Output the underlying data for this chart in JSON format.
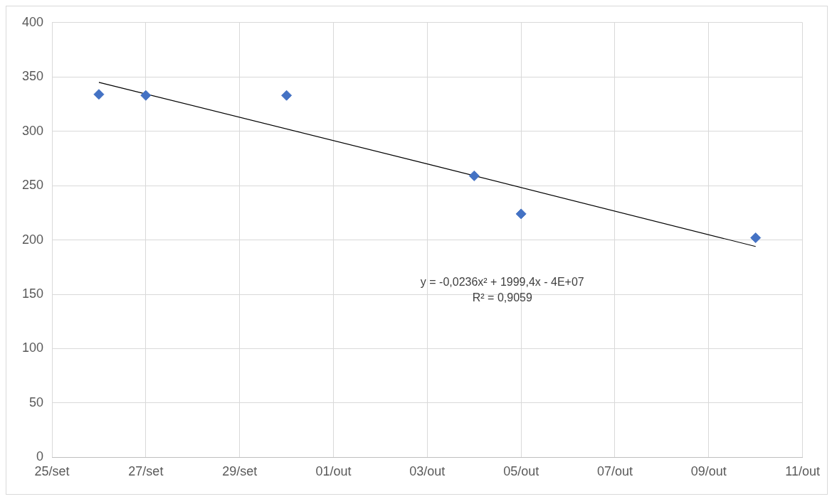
{
  "chart_data": {
    "type": "scatter",
    "marker": "diamond",
    "grid": true,
    "legend": false,
    "xlim": [
      "--09-25",
      "--10-11"
    ],
    "xticks": [
      {
        "value": "--09-25",
        "label": "25/set"
      },
      {
        "value": "--09-27",
        "label": "27/set"
      },
      {
        "value": "--09-29",
        "label": "29/set"
      },
      {
        "value": "--10-01",
        "label": "01/out"
      },
      {
        "value": "--10-03",
        "label": "03/out"
      },
      {
        "value": "--10-05",
        "label": "05/out"
      },
      {
        "value": "--10-07",
        "label": "07/out"
      },
      {
        "value": "--10-09",
        "label": "09/out"
      },
      {
        "value": "--10-11",
        "label": "11/out"
      }
    ],
    "ylim": [
      0,
      400
    ],
    "yticks": [
      0,
      50,
      100,
      150,
      200,
      250,
      300,
      350,
      400
    ],
    "series": [
      {
        "type": "scatter",
        "color": "#4472c4",
        "x": [
          "--09-26",
          "--09-27",
          "--09-30",
          "--10-04",
          "--10-05",
          "--10-10"
        ],
        "values": [
          334,
          333,
          333,
          259,
          224,
          202
        ]
      },
      {
        "type": "line",
        "color": "#000000",
        "marker": "none",
        "x": [
          "--09-26",
          "--10-03",
          "--10-10"
        ],
        "values": [
          345,
          270,
          194
        ]
      }
    ],
    "annotations": [
      "y = -0,0236x² + 1999,4x - 4E+07",
      "R² = 0,9059"
    ]
  }
}
